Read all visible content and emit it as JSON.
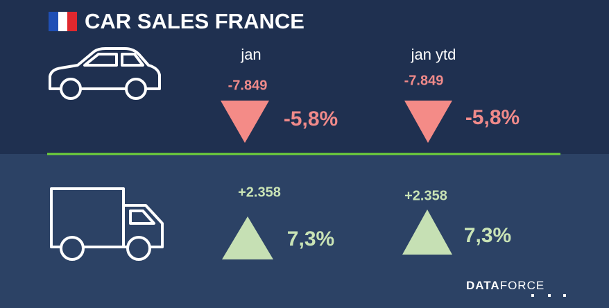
{
  "header": {
    "title": "CAR SALES FRANCE"
  },
  "columns": [
    "jan",
    "jan ytd"
  ],
  "rows": [
    {
      "cells": [
        {
          "change": "-7.849",
          "percent": "-5,8%"
        },
        {
          "change": "-7.849",
          "percent": "-5,8%"
        }
      ]
    },
    {
      "cells": [
        {
          "change": "+2.358",
          "percent": "7,3%"
        },
        {
          "change": "+2.358",
          "percent": "7,3%"
        }
      ]
    }
  ],
  "footer": {
    "logo_bold": "DATA",
    "logo_light": "FORCE"
  }
}
